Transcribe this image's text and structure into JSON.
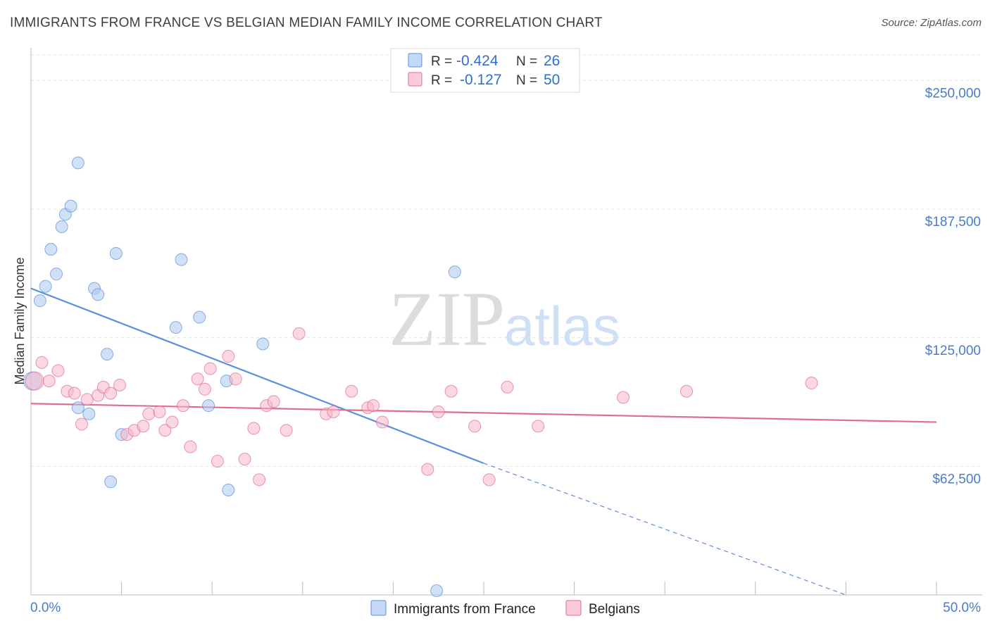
{
  "header": {
    "title": "IMMIGRANTS FROM FRANCE VS BELGIAN MEDIAN FAMILY INCOME CORRELATION CHART",
    "source": "Source: ZipAtlas.com"
  },
  "watermark": {
    "zip": "ZIP",
    "atlas": "atlas"
  },
  "stats_legend": {
    "rows": [
      {
        "r_label": "R =",
        "r_value": "-0.424",
        "n_label": "N =",
        "n_value": "26",
        "color": "#aac8f0"
      },
      {
        "r_label": "R =",
        "r_value": "-0.127",
        "n_label": "N =",
        "n_value": "50",
        "color": "#f7b6c8"
      }
    ]
  },
  "chart_data": {
    "type": "scatter",
    "title": "IMMIGRANTS FROM FRANCE VS BELGIAN MEDIAN FAMILY INCOME CORRELATION CHART",
    "xlabel": "",
    "ylabel": "Median Family Income",
    "xlim": [
      0,
      50
    ],
    "ylim": [
      0,
      262500
    ],
    "x_tick_labels": [
      "0.0%",
      "50.0%"
    ],
    "y_ticks": [
      62500,
      125000,
      187500,
      250000
    ],
    "y_tick_labels": [
      "$62,500",
      "$125,000",
      "$187,500",
      "$250,000"
    ],
    "grid": "horizontal dashed",
    "legend_position": "bottom-center",
    "series": [
      {
        "name": "Immigrants from France",
        "color": "#5b8fd9",
        "fill": "#aac8f0",
        "points": [
          [
            0.1,
            104000
          ],
          [
            0.5,
            143000
          ],
          [
            0.8,
            150000
          ],
          [
            1.1,
            168000
          ],
          [
            1.4,
            156000
          ],
          [
            1.7,
            179000
          ],
          [
            1.9,
            185000
          ],
          [
            2.2,
            189000
          ],
          [
            2.6,
            210000
          ],
          [
            2.6,
            91000
          ],
          [
            3.2,
            88000
          ],
          [
            3.5,
            149000
          ],
          [
            3.7,
            146000
          ],
          [
            4.2,
            117000
          ],
          [
            4.4,
            55000
          ],
          [
            4.7,
            166000
          ],
          [
            5.0,
            78000
          ],
          [
            8.0,
            130000
          ],
          [
            8.3,
            163000
          ],
          [
            9.3,
            135000
          ],
          [
            9.8,
            92000
          ],
          [
            10.8,
            104000
          ],
          [
            10.9,
            51000
          ],
          [
            12.8,
            122000
          ],
          [
            22.4,
            2000
          ],
          [
            23.4,
            157000
          ]
        ],
        "trend": {
          "x": [
            0,
            25
          ],
          "y": [
            149000,
            64000
          ],
          "dashed_extension_to": [
            45,
            0
          ]
        }
      },
      {
        "name": "Belgians",
        "color": "#e06b93",
        "fill": "#f7b6c8",
        "points": [
          [
            0.2,
            104000
          ],
          [
            0.6,
            113000
          ],
          [
            1.0,
            104000
          ],
          [
            1.5,
            109000
          ],
          [
            2.0,
            99000
          ],
          [
            2.4,
            98000
          ],
          [
            2.8,
            83000
          ],
          [
            3.1,
            95000
          ],
          [
            3.7,
            97000
          ],
          [
            4.0,
            101000
          ],
          [
            4.4,
            98000
          ],
          [
            4.9,
            102000
          ],
          [
            5.3,
            78000
          ],
          [
            5.7,
            80000
          ],
          [
            6.2,
            82000
          ],
          [
            6.5,
            88000
          ],
          [
            7.1,
            89000
          ],
          [
            7.4,
            80000
          ],
          [
            7.8,
            84000
          ],
          [
            8.4,
            92000
          ],
          [
            8.8,
            72000
          ],
          [
            9.2,
            105000
          ],
          [
            9.6,
            100000
          ],
          [
            9.9,
            110000
          ],
          [
            10.3,
            65000
          ],
          [
            10.9,
            116000
          ],
          [
            11.3,
            105000
          ],
          [
            11.8,
            66000
          ],
          [
            12.3,
            81000
          ],
          [
            12.6,
            56000
          ],
          [
            13.0,
            92000
          ],
          [
            13.4,
            94000
          ],
          [
            14.1,
            80000
          ],
          [
            14.8,
            127000
          ],
          [
            16.3,
            88000
          ],
          [
            16.7,
            89000
          ],
          [
            17.7,
            99000
          ],
          [
            18.6,
            91000
          ],
          [
            18.9,
            92000
          ],
          [
            19.4,
            84000
          ],
          [
            21.9,
            61000
          ],
          [
            22.5,
            89000
          ],
          [
            23.2,
            99000
          ],
          [
            24.5,
            82000
          ],
          [
            25.3,
            56000
          ],
          [
            26.3,
            101000
          ],
          [
            28.0,
            82000
          ],
          [
            32.7,
            96000
          ],
          [
            36.2,
            99000
          ],
          [
            43.1,
            103000
          ]
        ],
        "trend": {
          "x": [
            0,
            50
          ],
          "y": [
            93000,
            84000
          ]
        }
      }
    ]
  }
}
